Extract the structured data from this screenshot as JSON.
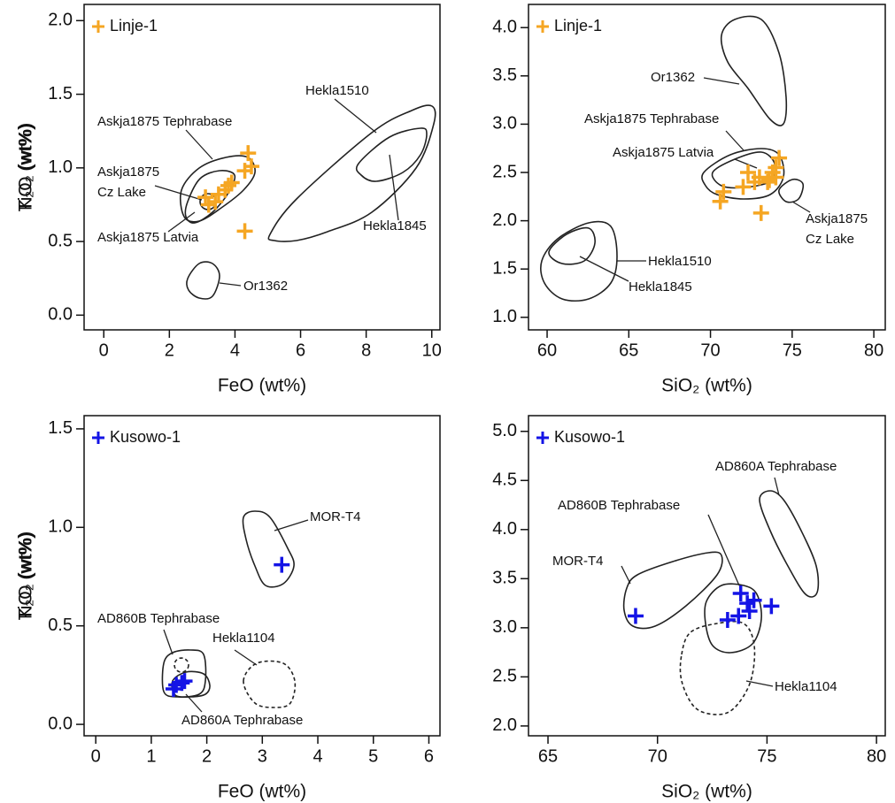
{
  "chart_data": [
    {
      "type": "scatter",
      "xlabel": "FeO (wt%)",
      "ylabel": "TiO₂ (wt%)",
      "xlim": [
        -0.6,
        10.25
      ],
      "ylim": [
        -0.1,
        2.11
      ],
      "xticks": [
        0,
        2,
        4,
        6,
        8,
        10
      ],
      "yticks": [
        {
          "value": 0,
          "label": "0.0"
        },
        {
          "value": 0.5,
          "label": "0.5"
        },
        {
          "value": 1,
          "label": "1.0"
        },
        {
          "value": 1.5,
          "label": "1.5"
        },
        {
          "value": 2,
          "label": "2.0"
        }
      ],
      "legend": "top-left",
      "series": [
        {
          "name": "Linje-1",
          "color": "#f5a623",
          "x": [
            4.4,
            4.5,
            4.3,
            3.9,
            3.8,
            3.5,
            3.1,
            3.4,
            3.2,
            4.3,
            3.7
          ],
          "values": [
            1.1,
            1.01,
            0.98,
            0.9,
            0.88,
            0.82,
            0.8,
            0.77,
            0.75,
            0.57,
            0.85
          ]
        }
      ],
      "annotations": [
        "Hekla1510",
        "Hekla1845",
        "Askja1875 Tephrabase",
        "Askja1875",
        "Cz Lake",
        "Askja1875 Latvia",
        "Or1362"
      ]
    },
    {
      "type": "scatter",
      "xlabel": "SiO₂ (wt%)",
      "ylabel": "K₂O (wt%)",
      "xlim": [
        58.86,
        80.7
      ],
      "ylim": [
        0.87,
        4.24
      ],
      "xticks": [
        60,
        65,
        70,
        75,
        80
      ],
      "yticks": [
        {
          "value": 1,
          "label": "1.0"
        },
        {
          "value": 1.5,
          "label": "1.5"
        },
        {
          "value": 2,
          "label": "2.0"
        },
        {
          "value": 2.5,
          "label": "2.5"
        },
        {
          "value": 3,
          "label": "3.0"
        },
        {
          "value": 3.5,
          "label": "3.5"
        },
        {
          "value": 4,
          "label": "4.0"
        }
      ],
      "legend": "top-left",
      "series": [
        {
          "name": "Linje-1",
          "color": "#f5a623",
          "x": [
            74.2,
            74,
            73.8,
            72.3,
            73,
            73.5,
            74,
            72,
            70.8,
            70.6,
            73.1,
            73.6,
            72.7
          ],
          "values": [
            2.65,
            2.55,
            2.5,
            2.5,
            2.45,
            2.4,
            2.45,
            2.35,
            2.3,
            2.2,
            2.08,
            2.42,
            2.4
          ]
        }
      ],
      "annotations": [
        "Or1362",
        "Askja1875 Tephrabase",
        "Askja1875 Latvia",
        "Askja1875",
        "Cz Lake",
        "Hekla1510",
        "Hekla1845"
      ]
    },
    {
      "type": "scatter",
      "xlabel": "FeO (wt%)",
      "ylabel": "TiO₂ (wt%)",
      "xlim": [
        -0.21,
        6.2
      ],
      "ylim": [
        -0.058,
        1.567
      ],
      "xticks": [
        0,
        1,
        2,
        3,
        4,
        5,
        6
      ],
      "yticks": [
        {
          "value": 0,
          "label": "0.0"
        },
        {
          "value": 0.5,
          "label": "0.5"
        },
        {
          "value": 1,
          "label": "1.0"
        },
        {
          "value": 1.5,
          "label": "1.5"
        }
      ],
      "legend": "top-left",
      "series": [
        {
          "name": "Kusowo-1",
          "color": "#1414e6",
          "x": [
            3.35,
            1.45,
            1.55,
            1.6,
            1.4
          ],
          "values": [
            0.81,
            0.2,
            0.21,
            0.22,
            0.18
          ]
        }
      ],
      "annotations": [
        "MOR-T4",
        "AD860B Tephrabase",
        "Hekla1104",
        "AD860A Tephrabase"
      ]
    },
    {
      "type": "scatter",
      "xlabel": "SiO₂ (wt%)",
      "ylabel": "K₂O (wt%)",
      "xlim": [
        64.11,
        80.4
      ],
      "ylim": [
        1.9,
        5.16
      ],
      "xticks": [
        65,
        70,
        75,
        80
      ],
      "yticks": [
        {
          "value": 2,
          "label": "2.0"
        },
        {
          "value": 2.5,
          "label": "2.5"
        },
        {
          "value": 3,
          "label": "3.0"
        },
        {
          "value": 3.5,
          "label": "3.5"
        },
        {
          "value": 4,
          "label": "4.0"
        },
        {
          "value": 4.5,
          "label": "4.5"
        },
        {
          "value": 5,
          "label": "5.0"
        }
      ],
      "legend": "top-left",
      "series": [
        {
          "name": "Kusowo-1",
          "color": "#1414e6",
          "x": [
            69,
            73.2,
            73.7,
            73.8,
            74.2,
            74.4,
            74.1,
            75.2
          ],
          "values": [
            3.12,
            3.08,
            3.12,
            3.35,
            3.17,
            3.28,
            3.25,
            3.22
          ]
        }
      ],
      "annotations": [
        "AD860A Tephrabase",
        "AD860B Tephrabase",
        "MOR-T4",
        "Hekla1104"
      ]
    }
  ]
}
